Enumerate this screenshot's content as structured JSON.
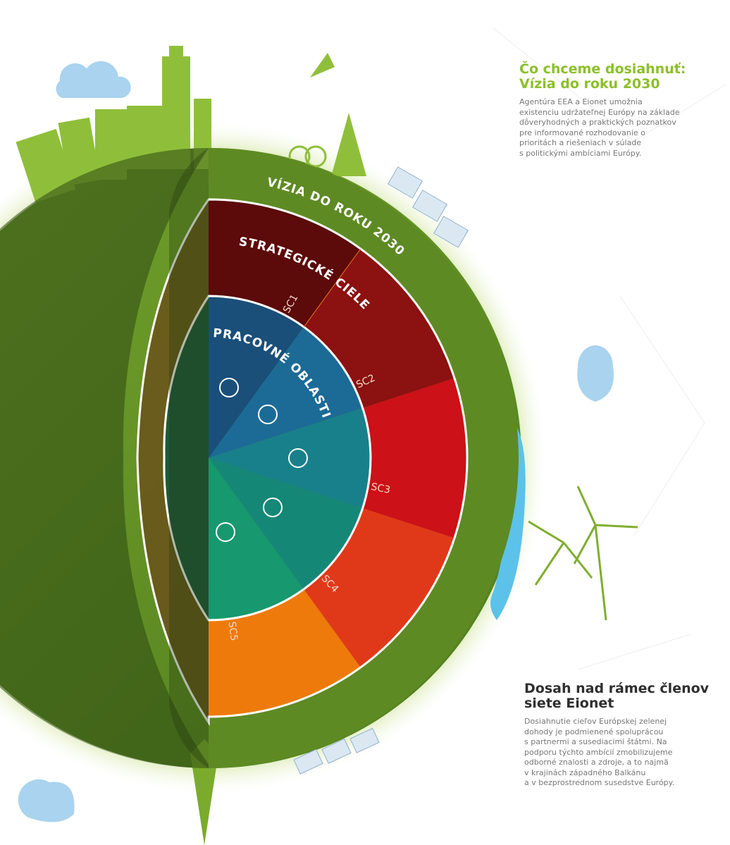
{
  "vision": {
    "title": [
      "Čo chceme dosiahnuť:",
      "Vízia do roku 2030"
    ],
    "text": [
      "Agentúra EEA a Eionet umožnia",
      "existenciu udržateľnej Európy na základe",
      "dôveryhodných a praktických poznatkov",
      "pre informované rozhodovanie o",
      "prioritách a riešeniach v súlade",
      "s politickými ambíciami Európy."
    ]
  },
  "outreach": {
    "title": [
      "Dosah nad rámec členov",
      "siete Eionet"
    ],
    "text": [
      "Dosiahnutie cieľov Európskej zelenej",
      "dohody je podmienené spoluprácou",
      "s partnermi a susediacimi štátmi. Na",
      "podporu týchto ambícií zmobilizujeme",
      "odborné znalosti a zdroje, a to najmä",
      "v krajinách západného Balkánu",
      "a v bezprostrednom susedstve Európy."
    ]
  },
  "diagram": {
    "outer_label": "VÍZIA DO ROKU 2030",
    "middle_label": "STRATEGICKÉ CIELE",
    "inner_label": "PRACOVNÉ OBLASTI",
    "goals": [
      "SC1",
      "SC2",
      "SC3",
      "SC4",
      "SC5"
    ]
  }
}
